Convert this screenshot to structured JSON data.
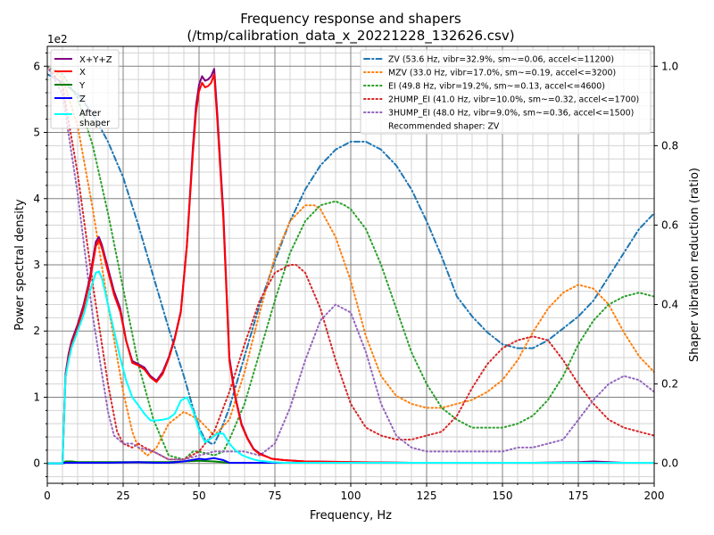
{
  "chart_data": {
    "type": "line",
    "title": "Frequency response and shapers",
    "subtitle": "(/tmp/calibration_data_x_20221228_132626.csv)",
    "xlabel": "Frequency, Hz",
    "ylabel": "Power spectral density",
    "ylabel_right": "Shaper vibration reduction (ratio)",
    "y_scale_label": "1e2",
    "xlim": [
      0,
      200
    ],
    "ylim": [
      -0.3,
      6.3
    ],
    "ylim_right": [
      -0.05,
      1.05
    ],
    "x_ticks": [
      "0",
      "25",
      "50",
      "75",
      "100",
      "125",
      "150",
      "175",
      "200"
    ],
    "x_tick_values": [
      0,
      25,
      50,
      75,
      100,
      125,
      150,
      175,
      200
    ],
    "y_ticks": [
      "0",
      "1",
      "2",
      "3",
      "4",
      "5",
      "6"
    ],
    "y_tick_values": [
      0,
      1,
      2,
      3,
      4,
      5,
      6
    ],
    "y_right_ticks": [
      "0.0",
      "0.2",
      "0.4",
      "0.6",
      "0.8",
      "1.0"
    ],
    "y_right_tick_values": [
      0,
      0.2,
      0.4,
      0.6,
      0.8,
      1.0
    ],
    "grid": true,
    "legend_left_placement": "top-left",
    "legend_right_placement": "top-right",
    "psd_series": [
      {
        "name": "X+Y+Z",
        "color": "#800080",
        "x": [
          0,
          5,
          6,
          7,
          8,
          10,
          12,
          14,
          16,
          17,
          18,
          20,
          22,
          24,
          26,
          28,
          30,
          32,
          34,
          36,
          38,
          40,
          42,
          44,
          46,
          48,
          49,
          50,
          51,
          52,
          53,
          54,
          55,
          56,
          58,
          60,
          62,
          64,
          66,
          68,
          70,
          74,
          78,
          85,
          100,
          120,
          140,
          160,
          175,
          180,
          185,
          190,
          200
        ],
        "y": [
          0,
          0,
          1.35,
          1.65,
          1.85,
          2.1,
          2.4,
          2.8,
          3.35,
          3.42,
          3.3,
          2.95,
          2.6,
          2.35,
          1.85,
          1.55,
          1.5,
          1.45,
          1.32,
          1.25,
          1.38,
          1.6,
          1.9,
          2.3,
          3.3,
          4.8,
          5.4,
          5.72,
          5.85,
          5.78,
          5.8,
          5.85,
          5.96,
          5.3,
          3.8,
          1.6,
          1.0,
          0.6,
          0.38,
          0.22,
          0.15,
          0.07,
          0.05,
          0.03,
          0.02,
          0.01,
          0.01,
          0.01,
          0.02,
          0.03,
          0.02,
          0.01,
          0.01
        ]
      },
      {
        "name": "X",
        "color": "#ff0000",
        "x": [
          0,
          5,
          6,
          7,
          8,
          10,
          12,
          14,
          16,
          17,
          18,
          20,
          22,
          24,
          26,
          28,
          30,
          32,
          34,
          36,
          38,
          40,
          42,
          44,
          46,
          48,
          49,
          50,
          51,
          52,
          53,
          54,
          55,
          56,
          58,
          60,
          62,
          64,
          66,
          68,
          70,
          74,
          78,
          85,
          100,
          120,
          140,
          160,
          175,
          180,
          185,
          190,
          200
        ],
        "y": [
          0,
          0,
          1.3,
          1.6,
          1.8,
          2.05,
          2.35,
          2.75,
          3.28,
          3.38,
          3.25,
          2.9,
          2.55,
          2.3,
          1.85,
          1.52,
          1.48,
          1.42,
          1.3,
          1.23,
          1.35,
          1.58,
          1.88,
          2.28,
          3.28,
          4.7,
          5.3,
          5.62,
          5.75,
          5.68,
          5.7,
          5.75,
          5.88,
          5.2,
          3.7,
          1.55,
          0.98,
          0.58,
          0.37,
          0.21,
          0.14,
          0.07,
          0.05,
          0.03,
          0.02,
          0.01,
          0.01,
          0.01,
          0.01,
          0.01,
          0.01,
          0.01,
          0.01
        ]
      },
      {
        "name": "Y",
        "color": "#008000",
        "x": [
          0,
          5,
          6,
          8,
          10,
          20,
          30,
          40,
          45,
          50,
          55,
          60,
          70,
          100,
          200
        ],
        "y": [
          0,
          0,
          0.03,
          0.03,
          0.02,
          0.02,
          0.02,
          0.02,
          0.03,
          0.04,
          0.03,
          0.01,
          0.01,
          0.01,
          0.01
        ]
      },
      {
        "name": "Z",
        "color": "#0000ff",
        "x": [
          0,
          5,
          6,
          10,
          20,
          30,
          35,
          40,
          45,
          50,
          52,
          55,
          58,
          60,
          65,
          70,
          100,
          200
        ],
        "y": [
          0,
          0,
          0.01,
          0.01,
          0.01,
          0.02,
          0.01,
          0.01,
          0.03,
          0.07,
          0.06,
          0.08,
          0.05,
          0.01,
          0.01,
          0.01,
          0.01,
          0.01
        ]
      },
      {
        "name": "After shaper",
        "color": "#00ffff",
        "x": [
          0,
          5,
          6,
          7,
          8,
          10,
          12,
          14,
          16,
          17,
          18,
          20,
          22,
          24,
          26,
          28,
          30,
          32,
          34,
          36,
          38,
          40,
          42,
          44,
          46,
          48,
          50,
          52,
          54,
          56,
          58,
          60,
          62,
          64,
          66,
          68,
          70,
          74,
          78,
          85,
          100,
          200
        ],
        "y": [
          0,
          0,
          1.3,
          1.55,
          1.75,
          2.0,
          2.25,
          2.6,
          2.88,
          2.9,
          2.8,
          2.4,
          2.0,
          1.6,
          1.25,
          1.0,
          0.88,
          0.75,
          0.65,
          0.65,
          0.66,
          0.68,
          0.75,
          0.95,
          1.0,
          0.8,
          0.5,
          0.32,
          0.38,
          0.45,
          0.45,
          0.3,
          0.2,
          0.13,
          0.09,
          0.06,
          0.04,
          0.02,
          0.01,
          0.01,
          0.01,
          0.01
        ]
      }
    ],
    "shaper_series": [
      {
        "name": "ZV",
        "label": "ZV (53.6 Hz, vibr=32.9%, sm~=0.06, accel<=11200)",
        "color": "#1f77b4",
        "dash": "dashdot",
        "x": [
          0,
          5,
          10,
          15,
          20,
          25,
          30,
          35,
          40,
          45,
          48,
          50,
          52,
          54,
          55,
          57,
          60,
          65,
          70,
          75,
          80,
          85,
          90,
          95,
          100,
          105,
          110,
          115,
          120,
          125,
          130,
          135,
          140,
          145,
          150,
          155,
          160,
          165,
          170,
          175,
          180,
          185,
          190,
          195,
          200
        ],
        "y": [
          0.98,
          0.96,
          0.93,
          0.88,
          0.81,
          0.72,
          0.6,
          0.47,
          0.34,
          0.22,
          0.14,
          0.09,
          0.06,
          0.05,
          0.05,
          0.08,
          0.14,
          0.27,
          0.4,
          0.51,
          0.61,
          0.69,
          0.75,
          0.79,
          0.81,
          0.81,
          0.79,
          0.75,
          0.69,
          0.61,
          0.52,
          0.42,
          0.37,
          0.33,
          0.3,
          0.29,
          0.29,
          0.31,
          0.34,
          0.37,
          0.41,
          0.47,
          0.53,
          0.59,
          0.63
        ]
      },
      {
        "name": "MZV",
        "label": "MZV (33.0 Hz, vibr=17.0%, sm~=0.19, accel<=3200)",
        "color": "#ff7f0e",
        "dash": "dotted",
        "x": [
          0,
          5,
          10,
          15,
          20,
          25,
          28,
          30,
          33,
          36,
          40,
          45,
          50,
          55,
          60,
          65,
          70,
          75,
          80,
          85,
          88,
          90,
          95,
          100,
          105,
          110,
          115,
          120,
          125,
          130,
          135,
          140,
          145,
          150,
          155,
          160,
          165,
          170,
          175,
          180,
          185,
          190,
          195,
          200
        ],
        "y": [
          1.0,
          0.97,
          0.85,
          0.64,
          0.4,
          0.18,
          0.08,
          0.04,
          0.02,
          0.04,
          0.1,
          0.13,
          0.11,
          0.07,
          0.11,
          0.23,
          0.38,
          0.52,
          0.61,
          0.65,
          0.65,
          0.64,
          0.57,
          0.46,
          0.32,
          0.22,
          0.17,
          0.15,
          0.14,
          0.14,
          0.15,
          0.16,
          0.18,
          0.21,
          0.26,
          0.33,
          0.39,
          0.43,
          0.45,
          0.44,
          0.4,
          0.33,
          0.27,
          0.23
        ]
      },
      {
        "name": "EI",
        "label": "EI (49.8 Hz, vibr=19.2%, sm~=0.13, accel<=4600)",
        "color": "#2ca02c",
        "dash": "dotted",
        "x": [
          0,
          5,
          10,
          15,
          20,
          25,
          30,
          35,
          40,
          45,
          48,
          50,
          55,
          58,
          60,
          65,
          70,
          75,
          80,
          85,
          90,
          95,
          98,
          100,
          105,
          110,
          115,
          120,
          125,
          130,
          135,
          140,
          145,
          150,
          155,
          160,
          165,
          170,
          175,
          180,
          185,
          190,
          195,
          200
        ],
        "y": [
          1.0,
          0.98,
          0.92,
          0.8,
          0.63,
          0.44,
          0.25,
          0.11,
          0.02,
          0.01,
          0.03,
          0.03,
          0.02,
          0.03,
          0.06,
          0.15,
          0.28,
          0.41,
          0.53,
          0.61,
          0.65,
          0.66,
          0.65,
          0.64,
          0.59,
          0.5,
          0.39,
          0.28,
          0.2,
          0.14,
          0.11,
          0.09,
          0.09,
          0.09,
          0.1,
          0.12,
          0.16,
          0.22,
          0.3,
          0.36,
          0.4,
          0.42,
          0.43,
          0.42
        ]
      },
      {
        "name": "2HUMP_EI",
        "label": "2HUMP_EI (41.0 Hz, vibr=10.0%, sm~=0.32, accel<=1700)",
        "color": "#d62728",
        "dash": "dotted",
        "x": [
          0,
          5,
          10,
          15,
          20,
          23,
          25,
          28,
          30,
          32,
          35,
          40,
          45,
          50,
          55,
          60,
          65,
          70,
          75,
          80,
          82,
          85,
          90,
          95,
          100,
          105,
          110,
          115,
          120,
          125,
          130,
          135,
          140,
          145,
          150,
          155,
          160,
          165,
          170,
          175,
          180,
          185,
          190,
          195,
          200
        ],
        "y": [
          1.0,
          0.95,
          0.73,
          0.45,
          0.2,
          0.08,
          0.05,
          0.04,
          0.05,
          0.04,
          0.03,
          0.01,
          0.01,
          0.03,
          0.08,
          0.18,
          0.3,
          0.41,
          0.48,
          0.5,
          0.5,
          0.48,
          0.39,
          0.26,
          0.15,
          0.09,
          0.07,
          0.06,
          0.06,
          0.07,
          0.08,
          0.12,
          0.19,
          0.25,
          0.29,
          0.31,
          0.32,
          0.31,
          0.26,
          0.2,
          0.15,
          0.11,
          0.09,
          0.08,
          0.07
        ]
      },
      {
        "name": "3HUMP_EI",
        "label": "3HUMP_EI (48.0 Hz, vibr=9.0%, sm~=0.36, accel<=1500)",
        "color": "#9467bd",
        "dash": "dotted",
        "x": [
          0,
          5,
          10,
          15,
          20,
          22,
          25,
          28,
          30,
          35,
          40,
          45,
          50,
          55,
          60,
          65,
          70,
          75,
          80,
          85,
          90,
          95,
          100,
          105,
          110,
          115,
          120,
          125,
          130,
          135,
          140,
          145,
          150,
          155,
          160,
          165,
          170,
          175,
          180,
          185,
          190,
          195,
          200
        ],
        "y": [
          1.0,
          0.93,
          0.68,
          0.37,
          0.13,
          0.07,
          0.05,
          0.05,
          0.04,
          0.03,
          0.01,
          0.01,
          0.02,
          0.03,
          0.03,
          0.03,
          0.02,
          0.05,
          0.14,
          0.26,
          0.36,
          0.4,
          0.38,
          0.28,
          0.15,
          0.07,
          0.04,
          0.03,
          0.03,
          0.03,
          0.03,
          0.03,
          0.03,
          0.04,
          0.04,
          0.05,
          0.06,
          0.11,
          0.16,
          0.2,
          0.22,
          0.21,
          0.18
        ]
      }
    ],
    "legend_left": [
      "X+Y+Z",
      "X",
      "Y",
      "Z",
      "After shaper"
    ],
    "legend_right": [
      "ZV (53.6 Hz, vibr=32.9%, sm~=0.06, accel<=11200)",
      "MZV (33.0 Hz, vibr=17.0%, sm~=0.19, accel<=3200)",
      "EI (49.8 Hz, vibr=19.2%, sm~=0.13, accel<=4600)",
      "2HUMP_EI (41.0 Hz, vibr=10.0%, sm~=0.32, accel<=1700)",
      "3HUMP_EI (48.0 Hz, vibr=9.0%, sm~=0.36, accel<=1500)",
      "Recommended shaper: ZV"
    ],
    "after_shaper_legend_lines": [
      "After",
      "shaper"
    ],
    "recommendation": "Recommended shaper: ZV"
  }
}
